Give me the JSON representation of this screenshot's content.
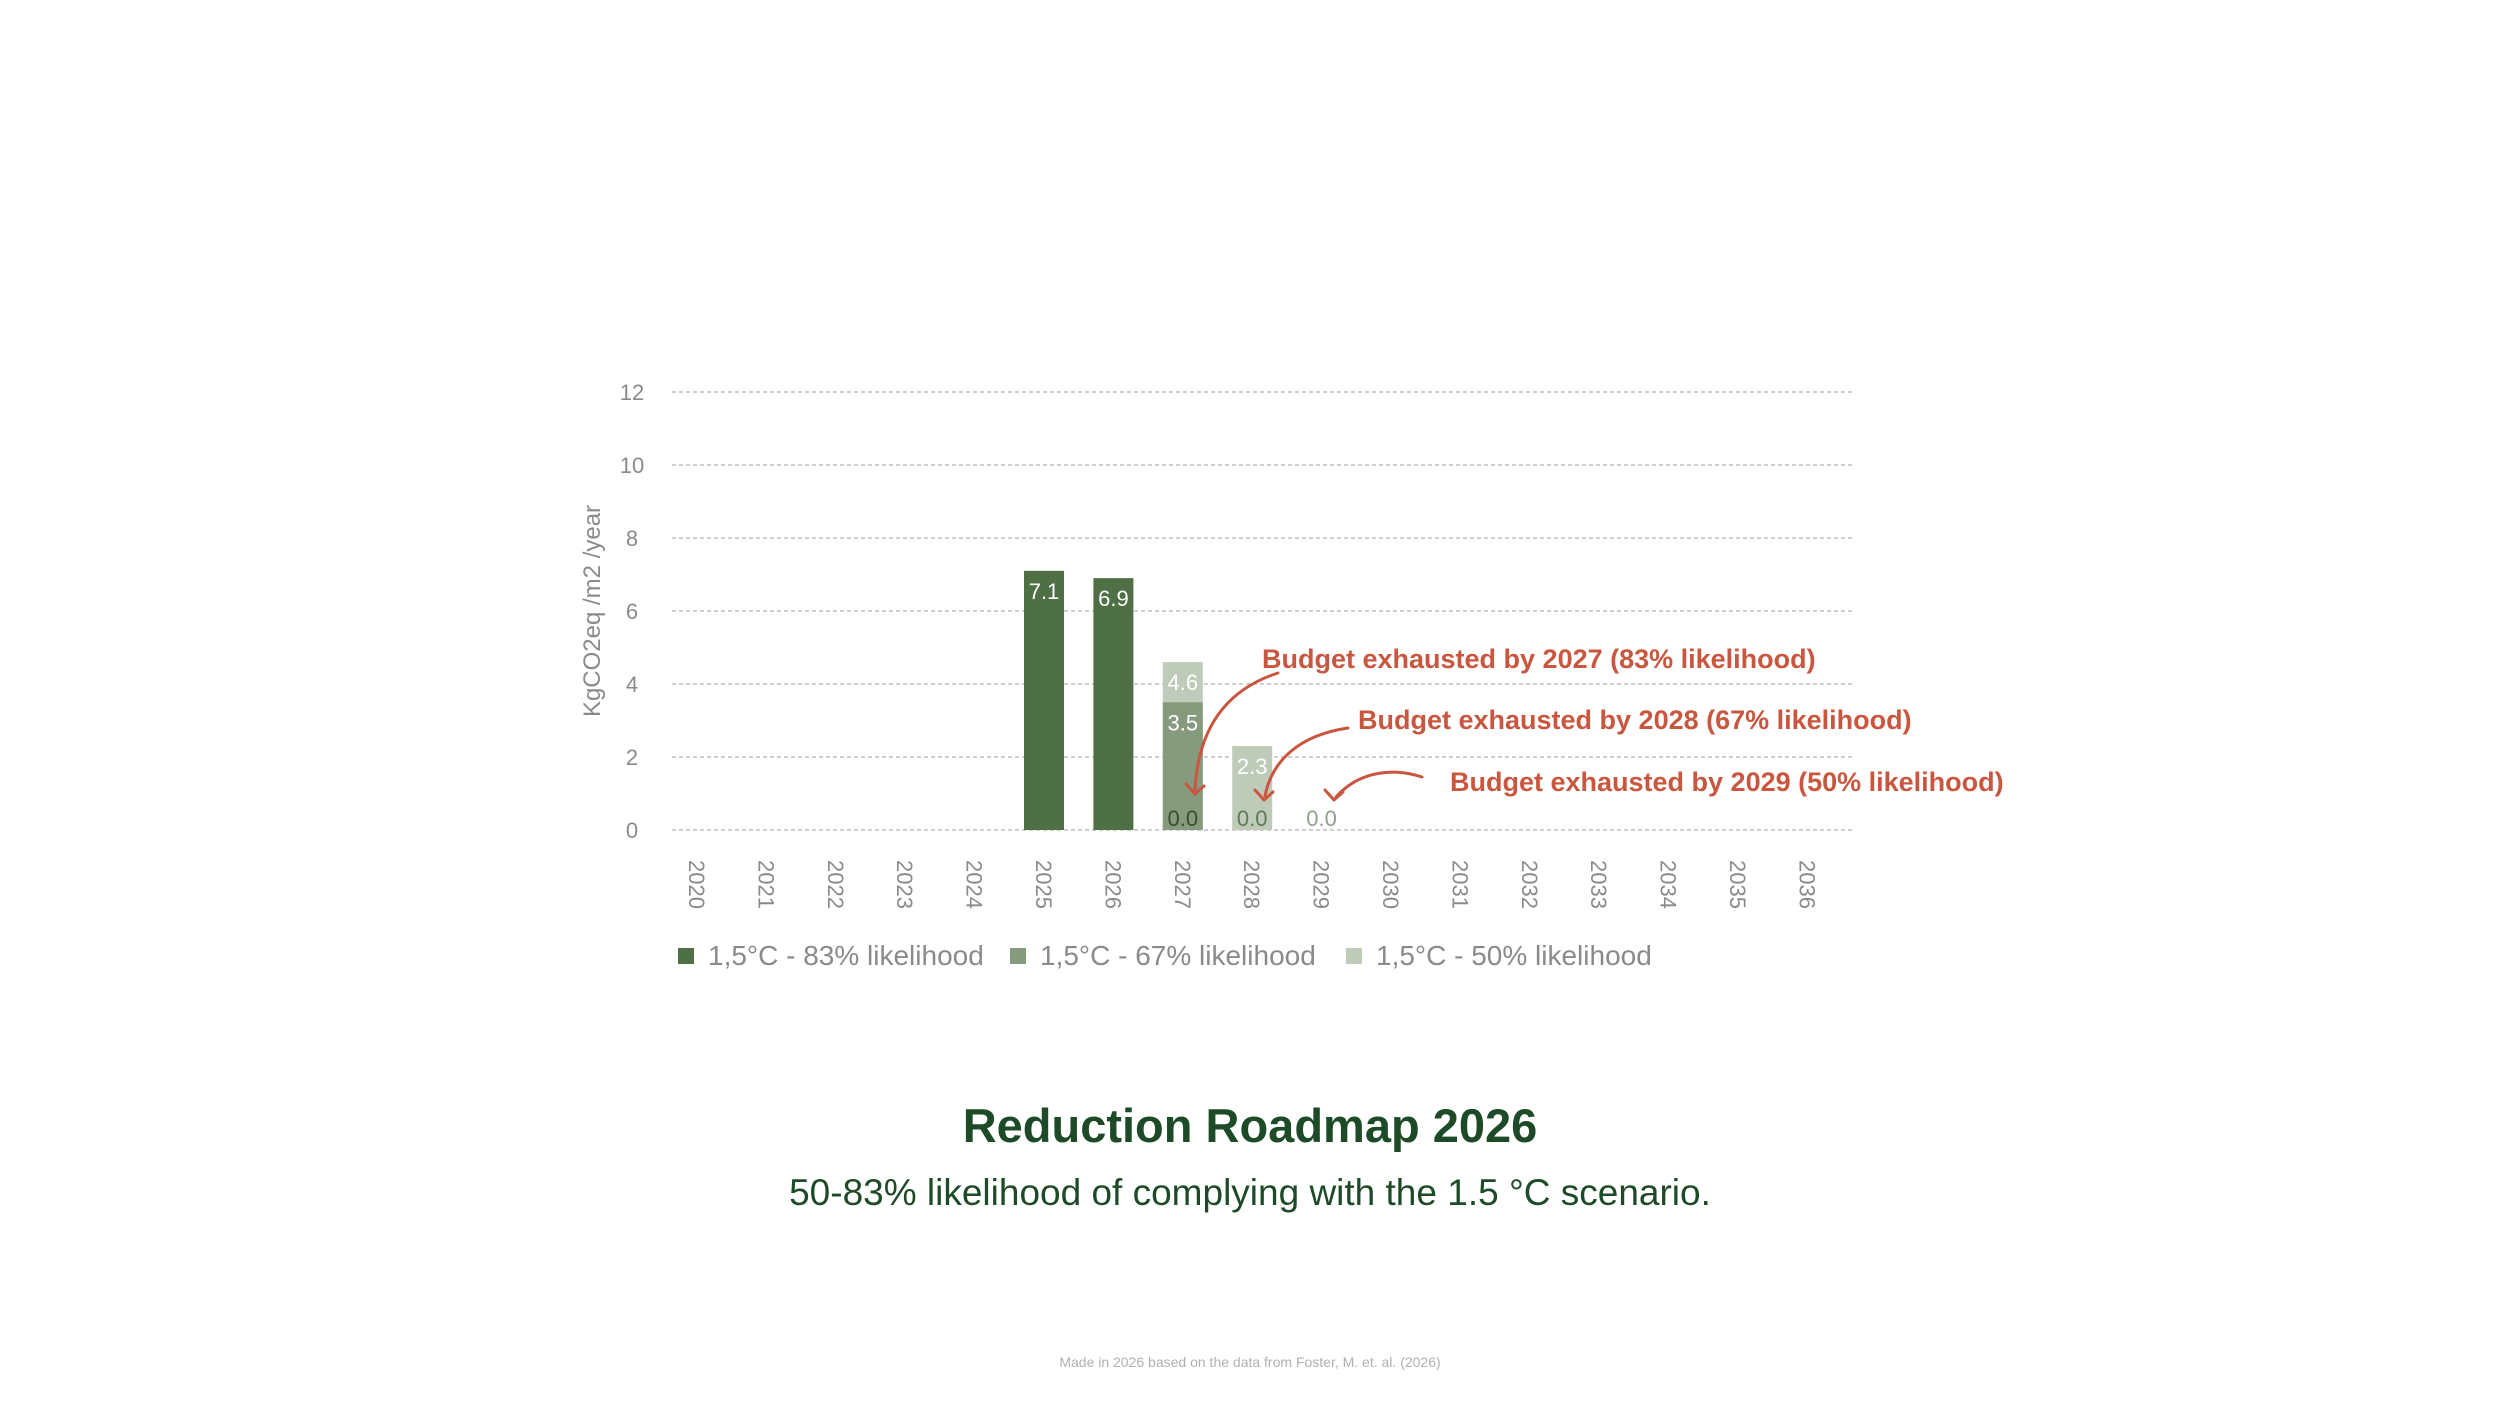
{
  "chart_data": {
    "type": "bar",
    "ylabel": "KgCO2eq /m2 /year",
    "ylim": [
      0,
      12
    ],
    "yticks": [
      0,
      2,
      4,
      6,
      8,
      10,
      12
    ],
    "categories": [
      "2020",
      "2021",
      "2022",
      "2023",
      "2024",
      "2025",
      "2026",
      "2027",
      "2028",
      "2029",
      "2030",
      "2031",
      "2032",
      "2033",
      "2034",
      "2035",
      "2036"
    ],
    "grid": true,
    "legend_position": "bottom-left",
    "series": [
      {
        "name": "1,5°C - 83% likelihood",
        "color": "#4f6f45",
        "values": [
          null,
          null,
          null,
          null,
          null,
          7.1,
          6.9,
          0.0,
          null,
          null,
          null,
          null,
          null,
          null,
          null,
          null,
          null
        ]
      },
      {
        "name": "1,5°C - 67% likelihood",
        "color": "#869a7e",
        "values": [
          null,
          null,
          null,
          null,
          null,
          null,
          null,
          3.5,
          0.0,
          null,
          null,
          null,
          null,
          null,
          null,
          null,
          null
        ]
      },
      {
        "name": "1,5°C - 50% likelihood",
        "color": "#bfcbb9",
        "values": [
          null,
          null,
          null,
          null,
          null,
          null,
          null,
          4.6,
          2.3,
          0.0,
          null,
          null,
          null,
          null,
          null,
          null,
          null
        ]
      }
    ],
    "data_labels": [
      {
        "category": "2025",
        "text": "7.1",
        "series": 0,
        "y": 7.1
      },
      {
        "category": "2026",
        "text": "6.9",
        "series": 0,
        "y": 6.9
      },
      {
        "category": "2027",
        "text": "4.6",
        "series": 2,
        "y": 4.6
      },
      {
        "category": "2027",
        "text": "3.5",
        "series": 1,
        "y": 3.5
      },
      {
        "category": "2027",
        "text": "0.0",
        "series": 0,
        "y": 0
      },
      {
        "category": "2028",
        "text": "2.3",
        "series": 2,
        "y": 2.3
      },
      {
        "category": "2028",
        "text": "0.0",
        "series": 1,
        "y": 0
      },
      {
        "category": "2029",
        "text": "0.0",
        "series": 2,
        "y": 0
      }
    ],
    "annotations": [
      {
        "text": "Budget exhausted by 2027 (83% likelihood)",
        "points_to": "2027",
        "color": "#c9573f"
      },
      {
        "text": "Budget exhausted by 2028 (67% likelihood)",
        "points_to": "2028",
        "color": "#c9573f"
      },
      {
        "text": "Budget exhausted by 2029 (50% likelihood)",
        "points_to": "2029",
        "color": "#c9573f"
      }
    ]
  },
  "title": "Reduction Roadmap 2026",
  "subtitle": "50-83% likelihood of complying with the 1.5 °C scenario.",
  "credit": "Made in 2026 based on the data from Foster, M. et. al. (2026)",
  "colors": {
    "title": "#1d4a27",
    "annotation": "#c9573f",
    "axis_text": "#8a8a8a",
    "grid": "#bdbdbd"
  }
}
